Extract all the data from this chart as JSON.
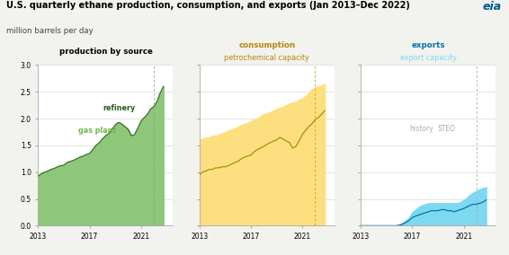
{
  "title": "U.S. quarterly ethane production, consumption, and exports (Jan 2013–Dec 2022)",
  "subtitle": "million barrels per day",
  "ylim": [
    0.0,
    3.0
  ],
  "yticks": [
    0.0,
    0.5,
    1.0,
    1.5,
    2.0,
    2.5,
    3.0
  ],
  "xlim_years": [
    2013,
    2023.5
  ],
  "xticks_years": [
    2013,
    2017,
    2021
  ],
  "dashed_line_year": 2022.0,
  "bg_color": "#f2f2ee",
  "panel_bg": "#ffffff",
  "history_label": "history",
  "steo_label": "STEO",
  "panel1": {
    "title": "production by source",
    "label1": "refinery",
    "label2": "gas plant",
    "fill_color": "#8dc87a",
    "line_color": "#3d6e2a",
    "years": [
      2013.0,
      2013.25,
      2013.5,
      2013.75,
      2014.0,
      2014.25,
      2014.5,
      2014.75,
      2015.0,
      2015.25,
      2015.5,
      2015.75,
      2016.0,
      2016.25,
      2016.5,
      2016.75,
      2017.0,
      2017.25,
      2017.5,
      2017.75,
      2018.0,
      2018.25,
      2018.5,
      2018.75,
      2019.0,
      2019.25,
      2019.5,
      2019.75,
      2020.0,
      2020.25,
      2020.5,
      2020.75,
      2021.0,
      2021.25,
      2021.5,
      2021.75,
      2022.0,
      2022.25,
      2022.5,
      2022.75
    ],
    "total": [
      0.93,
      0.97,
      1.0,
      1.02,
      1.05,
      1.07,
      1.1,
      1.12,
      1.13,
      1.18,
      1.2,
      1.22,
      1.25,
      1.28,
      1.3,
      1.33,
      1.35,
      1.42,
      1.5,
      1.55,
      1.62,
      1.68,
      1.72,
      1.8,
      1.88,
      1.93,
      1.9,
      1.85,
      1.8,
      1.68,
      1.7,
      1.82,
      1.95,
      2.02,
      2.08,
      2.18,
      2.22,
      2.32,
      2.48,
      2.6
    ]
  },
  "panel2": {
    "title": "consumption",
    "title2": "petrochemical capacity",
    "label1": "consumption",
    "label2": "petrochemical capacity",
    "fill_color": "#fce080",
    "line_color": "#b8860b",
    "years": [
      2013.0,
      2013.25,
      2013.5,
      2013.75,
      2014.0,
      2014.25,
      2014.5,
      2014.75,
      2015.0,
      2015.25,
      2015.5,
      2015.75,
      2016.0,
      2016.25,
      2016.5,
      2016.75,
      2017.0,
      2017.25,
      2017.5,
      2017.75,
      2018.0,
      2018.25,
      2018.5,
      2018.75,
      2019.0,
      2019.25,
      2019.5,
      2019.75,
      2020.0,
      2020.25,
      2020.5,
      2020.75,
      2021.0,
      2021.25,
      2021.5,
      2021.75,
      2022.0,
      2022.25,
      2022.5,
      2022.75
    ],
    "capacity": [
      1.62,
      1.62,
      1.65,
      1.65,
      1.68,
      1.68,
      1.7,
      1.72,
      1.75,
      1.78,
      1.8,
      1.82,
      1.85,
      1.88,
      1.9,
      1.92,
      1.95,
      1.98,
      2.0,
      2.05,
      2.08,
      2.1,
      2.12,
      2.15,
      2.18,
      2.2,
      2.22,
      2.25,
      2.28,
      2.3,
      2.32,
      2.35,
      2.38,
      2.42,
      2.48,
      2.55,
      2.58,
      2.6,
      2.62,
      2.65
    ],
    "consumption": [
      0.95,
      1.0,
      1.02,
      1.05,
      1.05,
      1.08,
      1.08,
      1.1,
      1.1,
      1.12,
      1.15,
      1.18,
      1.2,
      1.25,
      1.28,
      1.3,
      1.32,
      1.38,
      1.42,
      1.45,
      1.48,
      1.52,
      1.55,
      1.58,
      1.6,
      1.65,
      1.62,
      1.58,
      1.55,
      1.45,
      1.48,
      1.58,
      1.7,
      1.78,
      1.85,
      1.9,
      1.98,
      2.02,
      2.08,
      2.15
    ]
  },
  "panel3": {
    "title": "exports",
    "title2": "export capacity",
    "label1": "exports",
    "label2": "export capacity",
    "fill_color": "#7dd8f0",
    "line_color": "#0077aa",
    "years": [
      2013.0,
      2013.25,
      2013.5,
      2013.75,
      2014.0,
      2014.25,
      2014.5,
      2014.75,
      2015.0,
      2015.25,
      2015.5,
      2015.75,
      2016.0,
      2016.25,
      2016.5,
      2016.75,
      2017.0,
      2017.25,
      2017.5,
      2017.75,
      2018.0,
      2018.25,
      2018.5,
      2018.75,
      2019.0,
      2019.25,
      2019.5,
      2019.75,
      2020.0,
      2020.25,
      2020.5,
      2020.75,
      2021.0,
      2021.25,
      2021.5,
      2021.75,
      2022.0,
      2022.25,
      2022.5,
      2022.75
    ],
    "capacity": [
      0.0,
      0.0,
      0.0,
      0.0,
      0.0,
      0.0,
      0.0,
      0.0,
      0.0,
      0.0,
      0.0,
      0.0,
      0.02,
      0.05,
      0.1,
      0.15,
      0.25,
      0.3,
      0.35,
      0.38,
      0.4,
      0.42,
      0.42,
      0.42,
      0.42,
      0.42,
      0.42,
      0.42,
      0.42,
      0.42,
      0.42,
      0.44,
      0.48,
      0.52,
      0.58,
      0.62,
      0.65,
      0.68,
      0.7,
      0.72
    ],
    "exports": [
      0.0,
      0.0,
      0.0,
      0.0,
      0.0,
      0.0,
      0.0,
      0.0,
      0.0,
      0.0,
      0.0,
      0.0,
      0.01,
      0.03,
      0.06,
      0.1,
      0.15,
      0.18,
      0.2,
      0.22,
      0.24,
      0.26,
      0.28,
      0.28,
      0.28,
      0.3,
      0.3,
      0.28,
      0.28,
      0.26,
      0.28,
      0.3,
      0.32,
      0.35,
      0.38,
      0.4,
      0.4,
      0.42,
      0.44,
      0.48
    ]
  }
}
